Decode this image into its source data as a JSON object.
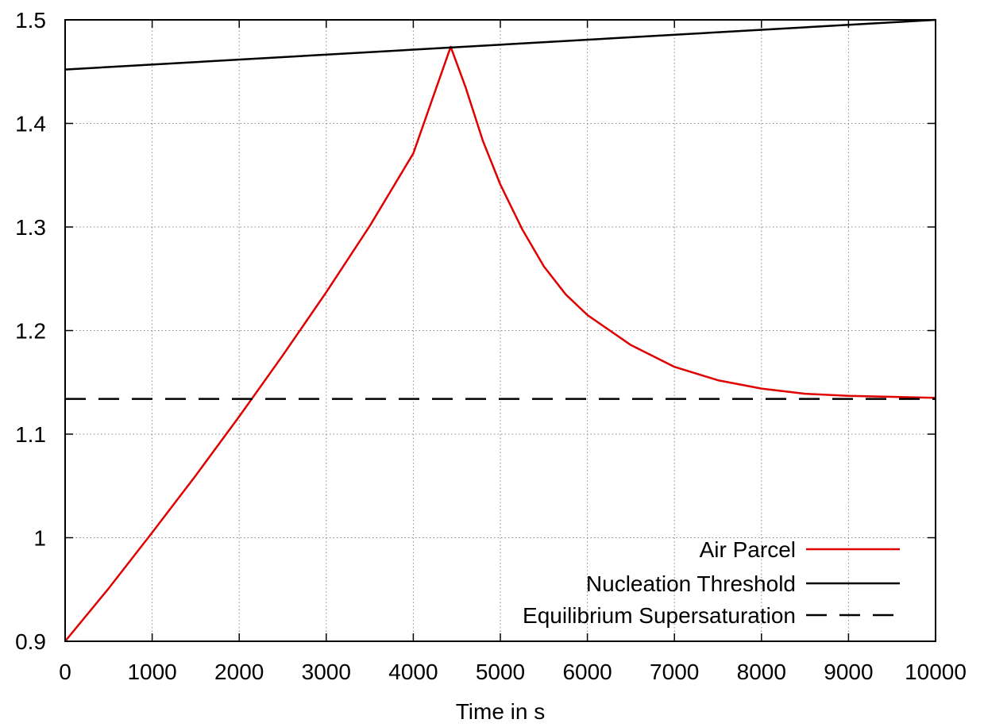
{
  "chart_data": {
    "type": "line",
    "title": "",
    "xlabel": "Time in s",
    "ylabel": "",
    "xlim": [
      0,
      10000
    ],
    "ylim": [
      0.9,
      1.5
    ],
    "x_ticks": [
      0,
      1000,
      2000,
      3000,
      4000,
      5000,
      6000,
      7000,
      8000,
      9000,
      10000
    ],
    "x_tick_labels": [
      "0",
      "1000",
      "2000",
      "3000",
      "4000",
      "5000",
      "6000",
      "7000",
      "8000",
      "9000",
      "10000"
    ],
    "y_ticks": [
      0.9,
      1.0,
      1.1,
      1.2,
      1.3,
      1.4,
      1.5
    ],
    "y_tick_labels": [
      "0.9",
      "1",
      "1.1",
      "1.2",
      "1.3",
      "1.4",
      "1.5"
    ],
    "grid": true,
    "legend_position": "bottom-right",
    "series": [
      {
        "name": "Air Parcel",
        "color": "#e00000",
        "style": "solid",
        "x": [
          0,
          500,
          1000,
          1500,
          2000,
          2500,
          3000,
          3500,
          4000,
          4430,
          4600,
          4800,
          5000,
          5250,
          5500,
          5750,
          6000,
          6500,
          7000,
          7500,
          8000,
          8500,
          9000,
          9500,
          10000
        ],
        "y": [
          0.9,
          0.951,
          1.005,
          1.06,
          1.117,
          1.176,
          1.237,
          1.301,
          1.371,
          1.474,
          1.435,
          1.383,
          1.341,
          1.298,
          1.262,
          1.235,
          1.215,
          1.186,
          1.165,
          1.152,
          1.144,
          1.139,
          1.137,
          1.136,
          1.135
        ]
      },
      {
        "name": "Nucleation Threshold",
        "color": "#000000",
        "style": "solid",
        "x": [
          0,
          10000
        ],
        "y": [
          1.452,
          1.5
        ]
      },
      {
        "name": "Equilibrium Supersaturation",
        "color": "#000000",
        "style": "dashed",
        "x": [
          0,
          10000
        ],
        "y": [
          1.134,
          1.134
        ]
      }
    ]
  }
}
